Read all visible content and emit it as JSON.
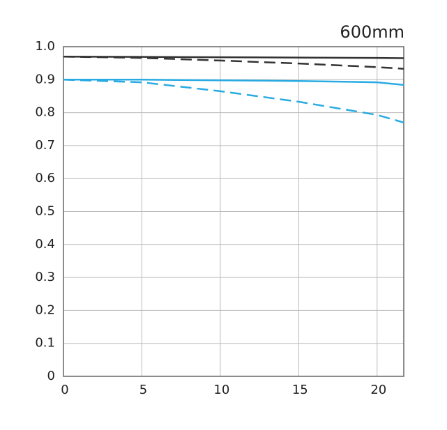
{
  "chart_data": {
    "type": "line",
    "title": "600mm",
    "x": [
      0,
      5,
      10,
      15,
      20,
      21.7
    ],
    "series": [
      {
        "color": "#333333",
        "dash": false,
        "values": [
          0.97,
          0.969,
          0.968,
          0.967,
          0.966,
          0.965
        ]
      },
      {
        "color": "#333333",
        "dash": true,
        "values": [
          0.97,
          0.966,
          0.958,
          0.949,
          0.938,
          0.933
        ]
      },
      {
        "color": "#29abe2",
        "dash": false,
        "values": [
          0.9,
          0.9,
          0.898,
          0.896,
          0.892,
          0.884
        ]
      },
      {
        "color": "#29abe2",
        "dash": true,
        "values": [
          0.9,
          0.892,
          0.865,
          0.833,
          0.793,
          0.77
        ]
      }
    ],
    "xlim": [
      0,
      21.7
    ],
    "xticks": [
      0,
      5,
      10,
      15,
      20
    ],
    "ylim": [
      0,
      1
    ],
    "yticks": [
      0,
      0.1,
      0.2,
      0.3,
      0.4,
      0.5,
      0.6,
      0.7,
      0.8,
      0.9,
      {
        "value": 1,
        "label": "1.0"
      }
    ],
    "grid": true
  }
}
